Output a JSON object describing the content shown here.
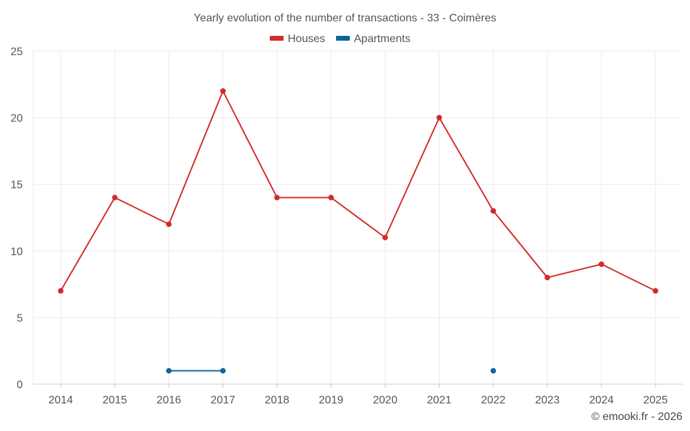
{
  "chart_data": {
    "type": "line",
    "title": "Yearly evolution of the number of transactions - 33 - Coimères",
    "categories": [
      "2014",
      "2015",
      "2016",
      "2017",
      "2018",
      "2019",
      "2020",
      "2021",
      "2022",
      "2023",
      "2024",
      "2025"
    ],
    "series": [
      {
        "name": "Houses",
        "color": "#d32a2a",
        "values": [
          7,
          14,
          12,
          22,
          14,
          14,
          11,
          20,
          13,
          8,
          9,
          7
        ]
      },
      {
        "name": "Apartments",
        "color": "#0f6599",
        "values": [
          null,
          null,
          1,
          1,
          null,
          null,
          null,
          null,
          1,
          null,
          null,
          null
        ]
      }
    ],
    "ylim": [
      0,
      25
    ],
    "yticks": [
      0,
      5,
      10,
      15,
      20,
      25
    ],
    "xlabel": "",
    "ylabel": "",
    "grid": true,
    "legend_position": "top-center"
  },
  "credit": "© emooki.fr - 2026"
}
